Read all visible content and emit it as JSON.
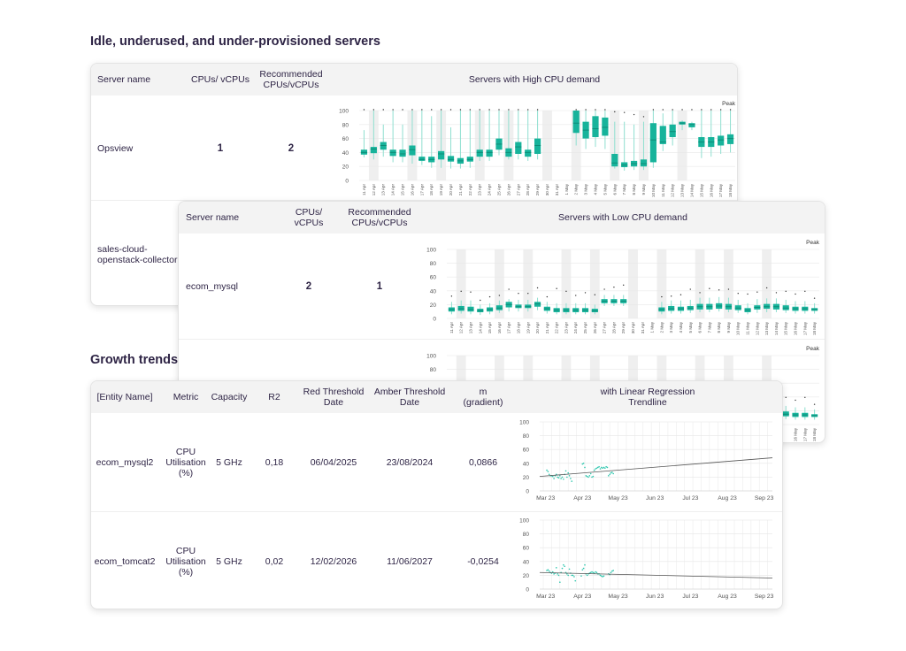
{
  "section1": {
    "title": "Idle, underused, and under-provisioned servers"
  },
  "high_table": {
    "headers": {
      "name": "Server name",
      "cpus": "CPUs/ vCPUs",
      "recommended": "Recommended\nCPUs/vCPUs",
      "chart": "Servers with High CPU demand"
    },
    "rows": [
      {
        "name": "Opsview",
        "cpus": "1",
        "recommended": "2"
      },
      {
        "name": "sales-cloud-\nopenstack-collector"
      }
    ]
  },
  "low_table": {
    "headers": {
      "name": "Server name",
      "cpus": "CPUs/\nvCPUs",
      "recommended": "Recommended\nCPUs/vCPUs",
      "chart": "Servers with Low CPU demand"
    },
    "rows": [
      {
        "name": "ecom_mysql",
        "cpus": "2",
        "recommended": "1"
      }
    ]
  },
  "section2": {
    "title": "Growth trends"
  },
  "growth_table": {
    "headers": {
      "entity": "[Entity Name]",
      "metric": "Metric",
      "capacity": "Capacity",
      "r2": "R2",
      "red": "Red Threshold\nDate",
      "amber": "Amber Threshold\nDate",
      "m": "m\n(gradient)",
      "chart": "with Linear Regression Trendline"
    },
    "rows": [
      {
        "entity": "ecom_mysql2",
        "metric": "CPU\nUtilisation\n(%)",
        "capacity": "5 GHz",
        "r2": "0,18",
        "red": "06/04/2025",
        "amber": "23/08/2024",
        "m": "0,0866"
      },
      {
        "entity": "ecom_tomcat2",
        "metric": "CPU\nUtilisation\n(%)",
        "capacity": "5 GHz",
        "r2": "0,02",
        "red": "12/02/2026",
        "amber": "11/06/2027",
        "m": "-0,0254"
      }
    ]
  },
  "colors": {
    "box": "#17b39b",
    "whisker": "#8fdfd0",
    "median": "#0d8c78",
    "point": "#2cc6ad",
    "trend": "#555555",
    "shade": "#efefef"
  },
  "chart_data": [
    {
      "type": "box",
      "title": "Servers with High CPU demand",
      "legend": "Peak",
      "ylim": [
        0,
        100
      ],
      "yticks": [
        "0",
        "20",
        "40",
        "60",
        "80",
        "100"
      ],
      "categories": [
        "11 Apr",
        "12 Apr",
        "13 Apr",
        "14 Apr",
        "15 Apr",
        "16 Apr",
        "17 Apr",
        "18 Apr",
        "19 Apr",
        "20 Apr",
        "21 Apr",
        "22 Apr",
        "23 Apr",
        "24 Apr",
        "25 Apr",
        "26 Apr",
        "27 Apr",
        "28 Apr",
        "29 Apr",
        "30 Apr",
        "31 Apr",
        "1 May",
        "2 May",
        "3 May",
        "4 May",
        "5 May",
        "6 May",
        "7 May",
        "8 May",
        "9 May",
        "10 May",
        "11 May",
        "12 May",
        "13 May",
        "14 May",
        "15 May",
        "16 May",
        "17 May",
        "18 May"
      ],
      "shaded": [
        1,
        5,
        8,
        12,
        15,
        19,
        22,
        26,
        29,
        33
      ],
      "median": [
        40,
        45,
        50,
        40,
        38,
        44,
        30,
        30,
        38,
        30,
        28,
        30,
        40,
        40,
        52,
        40,
        48,
        40,
        50,
        null,
        null,
        null,
        82,
        72,
        74,
        76,
        25,
        22,
        24,
        24,
        58,
        55,
        70,
        82,
        80,
        55,
        55,
        58,
        60
      ],
      "q1": [
        37,
        39,
        44,
        35,
        34,
        36,
        28,
        26,
        30,
        27,
        24,
        27,
        34,
        34,
        44,
        34,
        38,
        34,
        38,
        null,
        null,
        null,
        68,
        60,
        62,
        64,
        20,
        19,
        20,
        20,
        26,
        52,
        62,
        80,
        76,
        48,
        48,
        50,
        52
      ],
      "q3": [
        44,
        48,
        55,
        44,
        44,
        50,
        34,
        34,
        42,
        35,
        32,
        34,
        44,
        44,
        60,
        46,
        55,
        44,
        60,
        null,
        null,
        null,
        100,
        84,
        92,
        90,
        38,
        26,
        28,
        30,
        82,
        78,
        80,
        84,
        82,
        62,
        62,
        64,
        66
      ],
      "min": [
        33,
        30,
        34,
        26,
        26,
        24,
        22,
        18,
        18,
        17,
        17,
        18,
        28,
        28,
        36,
        30,
        30,
        28,
        30,
        null,
        null,
        null,
        50,
        45,
        48,
        45,
        17,
        14,
        15,
        15,
        18,
        42,
        50,
        72,
        72,
        32,
        34,
        38,
        40
      ],
      "max": [
        72,
        100,
        80,
        100,
        80,
        100,
        100,
        92,
        100,
        76,
        100,
        100,
        100,
        100,
        100,
        100,
        100,
        100,
        100,
        null,
        null,
        null,
        100,
        100,
        100,
        100,
        84,
        84,
        80,
        84,
        100,
        96,
        100,
        86,
        84,
        100,
        100,
        100,
        100
      ],
      "peak": [
        100,
        100,
        100,
        100,
        100,
        100,
        100,
        100,
        100,
        100,
        100,
        100,
        100,
        100,
        100,
        100,
        100,
        100,
        100,
        null,
        null,
        null,
        100,
        100,
        100,
        100,
        97,
        96,
        93,
        90,
        100,
        100,
        100,
        100,
        100,
        100,
        100,
        100,
        100
      ]
    },
    {
      "type": "box",
      "title": "Servers with Low CPU demand",
      "legend": "Peak",
      "ylim": [
        0,
        100
      ],
      "yticks": [
        "0",
        "20",
        "40",
        "60",
        "80",
        "100"
      ],
      "categories": [
        "11 Apr",
        "12 Apr",
        "13 Apr",
        "14 Apr",
        "15 Apr",
        "16 Apr",
        "17 Apr",
        "18 Apr",
        "19 Apr",
        "20 Apr",
        "21 Apr",
        "22 Apr",
        "23 Apr",
        "24 Apr",
        "25 Apr",
        "26 Apr",
        "27 Apr",
        "28 Apr",
        "29 Apr",
        "30 Apr",
        "31 Apr",
        "1 May",
        "2 May",
        "3 May",
        "4 May",
        "5 May",
        "6 May",
        "7 May",
        "8 May",
        "9 May",
        "10 May",
        "11 May",
        "12 May",
        "13 May",
        "14 May",
        "15 May",
        "16 May",
        "17 May",
        "18 May"
      ],
      "shaded": [
        1,
        5,
        8,
        12,
        15,
        19,
        22,
        26,
        29,
        33
      ],
      "median": [
        13,
        14,
        13,
        11,
        13,
        15,
        20,
        17,
        17,
        21,
        14,
        12,
        12,
        12,
        12,
        11,
        25,
        25,
        25,
        null,
        null,
        null,
        13,
        14,
        14,
        15,
        17,
        17,
        18,
        17,
        15,
        12,
        16,
        17,
        17,
        15,
        14,
        14,
        13
      ],
      "q1": [
        10,
        11,
        10,
        9,
        10,
        12,
        16,
        15,
        15,
        17,
        11,
        9,
        9,
        9,
        9,
        9,
        22,
        22,
        22,
        null,
        null,
        null,
        10,
        11,
        11,
        12,
        13,
        13,
        14,
        13,
        12,
        9,
        13,
        14,
        13,
        12,
        11,
        11,
        11
      ],
      "q3": [
        16,
        18,
        17,
        14,
        16,
        19,
        24,
        20,
        20,
        24,
        17,
        15,
        15,
        15,
        15,
        14,
        28,
        28,
        28,
        null,
        null,
        null,
        16,
        18,
        17,
        18,
        21,
        21,
        22,
        21,
        19,
        15,
        19,
        21,
        21,
        19,
        17,
        17,
        15
      ],
      "min": [
        6,
        7,
        6,
        5,
        6,
        8,
        10,
        10,
        10,
        12,
        7,
        6,
        6,
        6,
        6,
        6,
        18,
        18,
        18,
        null,
        null,
        null,
        6,
        7,
        7,
        8,
        9,
        9,
        10,
        9,
        8,
        6,
        8,
        9,
        9,
        8,
        7,
        7,
        7
      ],
      "max": [
        24,
        26,
        26,
        20,
        22,
        26,
        28,
        27,
        27,
        30,
        24,
        22,
        22,
        22,
        22,
        20,
        34,
        34,
        34,
        null,
        null,
        null,
        24,
        26,
        26,
        27,
        30,
        30,
        31,
        30,
        27,
        22,
        28,
        29,
        29,
        27,
        25,
        25,
        22
      ],
      "peak": [
        31,
        38,
        37,
        25,
        30,
        32,
        41,
        35,
        35,
        43,
        30,
        42,
        38,
        32,
        36,
        33,
        41,
        44,
        47,
        null,
        null,
        null,
        30,
        31,
        33,
        41,
        36,
        42,
        40,
        41,
        35,
        34,
        37,
        43,
        36,
        38,
        34,
        38,
        28
      ]
    },
    {
      "type": "scatter",
      "title": "with Linear Regression Trendline",
      "entity": "ecom_mysql2",
      "ylim": [
        0,
        100
      ],
      "yticks": [
        "0",
        "20",
        "40",
        "60",
        "80",
        "100"
      ],
      "xlim_days": [
        -5,
        191
      ],
      "months": [
        {
          "label": "Mar 23",
          "day": 0
        },
        {
          "label": "Apr 23",
          "day": 31
        },
        {
          "label": "May 23",
          "day": 61
        },
        {
          "label": "Jun 23",
          "day": 92
        },
        {
          "label": "Jul 23",
          "day": 122
        },
        {
          "label": "Aug 23",
          "day": 153
        },
        {
          "label": "Sep 23",
          "day": 184
        }
      ],
      "points": [
        [
          1,
          30
        ],
        [
          2,
          28
        ],
        [
          3,
          24
        ],
        [
          4,
          22
        ],
        [
          5,
          22
        ],
        [
          6,
          21
        ],
        [
          7,
          18
        ],
        [
          8,
          22
        ],
        [
          9,
          24
        ],
        [
          10,
          20
        ],
        [
          11,
          19
        ],
        [
          12,
          22
        ],
        [
          13,
          18
        ],
        [
          14,
          20
        ],
        [
          15,
          17
        ],
        [
          16,
          24
        ],
        [
          17,
          29
        ],
        [
          18,
          20
        ],
        [
          19,
          26
        ],
        [
          20,
          22
        ],
        [
          21,
          18
        ],
        [
          22,
          14
        ],
        [
          31,
          39
        ],
        [
          32,
          40
        ],
        [
          33,
          34
        ],
        [
          34,
          22
        ],
        [
          35,
          21
        ],
        [
          36,
          20
        ],
        [
          37,
          22
        ],
        [
          38,
          25
        ],
        [
          39,
          20
        ],
        [
          40,
          21
        ],
        [
          41,
          30
        ],
        [
          42,
          32
        ],
        [
          43,
          33
        ],
        [
          44,
          34
        ],
        [
          45,
          35
        ],
        [
          46,
          32
        ],
        [
          47,
          34
        ],
        [
          48,
          33
        ],
        [
          49,
          34
        ],
        [
          50,
          33
        ],
        [
          51,
          35
        ],
        [
          52,
          34
        ],
        [
          53,
          22
        ],
        [
          54,
          24
        ],
        [
          55,
          26
        ],
        [
          56,
          27
        ],
        [
          57,
          25
        ]
      ],
      "trend": [
        [
          -5,
          21
        ],
        [
          191,
          48
        ]
      ]
    },
    {
      "type": "scatter",
      "title": "with Linear Regression Trendline",
      "entity": "ecom_tomcat2",
      "ylim": [
        0,
        100
      ],
      "yticks": [
        "0",
        "20",
        "40",
        "60",
        "80",
        "100"
      ],
      "xlim_days": [
        -5,
        191
      ],
      "months": [
        {
          "label": "Mar 23",
          "day": 0
        },
        {
          "label": "Apr 23",
          "day": 31
        },
        {
          "label": "May 23",
          "day": 61
        },
        {
          "label": "Jun 23",
          "day": 92
        },
        {
          "label": "Jul 23",
          "day": 122
        },
        {
          "label": "Aug 23",
          "day": 153
        },
        {
          "label": "Sep 23",
          "day": 184
        }
      ],
      "points": [
        [
          1,
          27
        ],
        [
          2,
          28
        ],
        [
          3,
          26
        ],
        [
          4,
          24
        ],
        [
          5,
          23
        ],
        [
          6,
          25
        ],
        [
          7,
          22
        ],
        [
          8,
          23
        ],
        [
          9,
          31
        ],
        [
          10,
          22
        ],
        [
          11,
          20
        ],
        [
          12,
          10
        ],
        [
          13,
          24
        ],
        [
          14,
          30
        ],
        [
          15,
          35
        ],
        [
          16,
          33
        ],
        [
          17,
          24
        ],
        [
          18,
          22
        ],
        [
          19,
          20
        ],
        [
          20,
          29
        ],
        [
          21,
          23
        ],
        [
          22,
          20
        ],
        [
          23,
          20
        ],
        [
          24,
          18
        ],
        [
          25,
          12
        ],
        [
          30,
          19
        ],
        [
          31,
          28
        ],
        [
          32,
          30
        ],
        [
          33,
          35
        ],
        [
          34,
          22
        ],
        [
          35,
          20
        ],
        [
          36,
          22
        ],
        [
          37,
          23
        ],
        [
          38,
          24
        ],
        [
          39,
          25
        ],
        [
          40,
          24
        ],
        [
          41,
          23
        ],
        [
          42,
          25
        ],
        [
          43,
          24
        ],
        [
          44,
          22
        ],
        [
          45,
          22
        ],
        [
          46,
          20
        ],
        [
          47,
          19
        ],
        [
          48,
          18
        ],
        [
          49,
          19
        ],
        [
          53,
          22
        ],
        [
          54,
          21
        ],
        [
          55,
          24
        ],
        [
          56,
          26
        ],
        [
          57,
          27
        ]
      ],
      "trend": [
        [
          -5,
          24
        ],
        [
          191,
          16
        ]
      ]
    }
  ]
}
